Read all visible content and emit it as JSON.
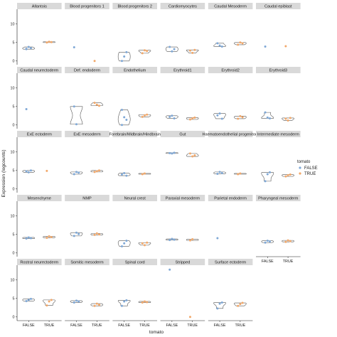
{
  "chart_data": {
    "type": "violin",
    "xlabel": "tomato",
    "ylabel": "Expression (logcounts)",
    "categories": [
      "FALSE",
      "TRUE"
    ],
    "ylim": [
      -1,
      14
    ],
    "yticks": [
      0,
      5,
      10
    ],
    "grid": false,
    "legend": {
      "title": "tomato",
      "position": "right",
      "entries": [
        {
          "label": "FALSE",
          "color": "#7fa8d6"
        },
        {
          "label": "TRUE",
          "color": "#f2a86a"
        }
      ]
    },
    "colors": {
      "FALSE": "#7fa8d6",
      "TRUE": "#f2a86a",
      "violin": "#555555",
      "strip": "#d9d9d9"
    },
    "panels": [
      {
        "name": "Allantois",
        "FALSE": [
          3.2,
          3.8,
          3.5,
          3.3
        ],
        "TRUE": [
          5.0,
          5.2,
          5.1
        ]
      },
      {
        "name": "Blood progenitors 1",
        "FALSE": [
          3.7
        ],
        "TRUE": [
          0.0
        ]
      },
      {
        "name": "Blood progenitors 2",
        "FALSE": [
          0.0,
          1.2,
          2.4
        ],
        "TRUE": [
          2.1,
          2.9,
          2.7
        ]
      },
      {
        "name": "Cardiomyocytes",
        "FALSE": [
          3.8,
          2.6,
          3.2
        ],
        "TRUE": [
          2.8,
          2.2,
          3.0
        ]
      },
      {
        "name": "Caudal Mesoderm",
        "FALSE": [
          4.8,
          4.2,
          3.9
        ],
        "TRUE": [
          4.4,
          5.0,
          4.8
        ]
      },
      {
        "name": "Caudal epiblast",
        "FALSE": [
          3.9
        ],
        "TRUE": [
          4.0
        ]
      },
      {
        "name": "Caudal neurectoderm",
        "FALSE": [
          4.3
        ],
        "TRUE": []
      },
      {
        "name": "Def. endoderm",
        "FALSE": [
          5.0,
          0.2
        ],
        "TRUE": [
          6.0,
          5.5,
          5.2
        ]
      },
      {
        "name": "Endothelium",
        "FALSE": [
          0.0,
          2.1,
          1.4,
          4.1
        ],
        "TRUE": [
          2.2,
          2.6,
          2.8
        ]
      },
      {
        "name": "Erythroid1",
        "FALSE": [
          2.2,
          2.5,
          1.8
        ],
        "TRUE": [
          1.5,
          1.8,
          2.0
        ]
      },
      {
        "name": "Erythroid2",
        "FALSE": [
          2.6,
          3.1,
          1.7
        ],
        "TRUE": [
          1.7,
          2.4,
          2.1
        ]
      },
      {
        "name": "Erythroid3",
        "FALSE": [
          3.4,
          2.0,
          1.8
        ],
        "TRUE": [
          1.7,
          1.2,
          1.9
        ]
      },
      {
        "name": "ExE ectoderm",
        "FALSE": [
          4.8,
          4.5,
          5.0
        ],
        "TRUE": [
          4.9
        ]
      },
      {
        "name": "ExE mesoderm",
        "FALSE": [
          4.0,
          4.6,
          4.4
        ],
        "TRUE": [
          4.6,
          4.8,
          5.0
        ]
      },
      {
        "name": "Forebrain/Midbrain/Hindbrain",
        "FALSE": [
          3.9,
          4.3,
          3.6
        ],
        "TRUE": [
          4.0,
          4.2
        ]
      },
      {
        "name": "Gut",
        "FALSE": [
          9.7,
          9.6,
          9.8
        ],
        "TRUE": [
          9.6,
          8.8,
          9.1
        ]
      },
      {
        "name": "Haematoendothelial progenitors",
        "FALSE": [
          4.1,
          4.6,
          4.3
        ],
        "TRUE": [
          4.0,
          4.2
        ]
      },
      {
        "name": "Intermediate mesoderm",
        "FALSE": [
          2.1,
          4.0,
          4.5
        ],
        "TRUE": [
          3.4,
          3.7,
          3.9
        ]
      },
      {
        "name": "Mesenchyme",
        "FALSE": [
          3.9,
          4.2,
          4.0
        ],
        "TRUE": [
          4.1,
          4.5,
          4.3
        ]
      },
      {
        "name": "NMP",
        "FALSE": [
          4.6,
          5.5,
          5.1
        ],
        "TRUE": [
          4.9,
          5.3,
          5.0
        ]
      },
      {
        "name": "Neural crest",
        "FALSE": [
          1.8,
          2.6,
          3.3
        ],
        "TRUE": [
          2.6,
          2.1,
          2.8
        ]
      },
      {
        "name": "Paraxial mesoderm",
        "FALSE": [
          3.5,
          3.8,
          3.6
        ],
        "TRUE": [
          3.4,
          3.7
        ]
      },
      {
        "name": "Parietal endoderm",
        "FALSE": [
          4.0
        ],
        "TRUE": []
      },
      {
        "name": "Pharyngeal mesoderm",
        "FALSE": [
          2.8,
          3.3,
          3.1
        ],
        "TRUE": [
          3.0,
          3.4,
          3.2
        ]
      },
      {
        "name": "Rostral neurectoderm",
        "FALSE": [
          4.3,
          4.6,
          4.9
        ],
        "TRUE": [
          3.1,
          4.2,
          4.6
        ]
      },
      {
        "name": "Somitic mesoderm",
        "FALSE": [
          3.9,
          4.4,
          4.2
        ],
        "TRUE": [
          3.0,
          3.6,
          3.3
        ]
      },
      {
        "name": "Spinal cord",
        "FALSE": [
          3.0,
          4.2,
          4.5
        ],
        "TRUE": [
          3.9,
          4.2,
          4.0
        ]
      },
      {
        "name": "Stripped",
        "FALSE": [
          12.8
        ],
        "TRUE": [
          0.0
        ]
      },
      {
        "name": "Surface ectoderm",
        "FALSE": [
          2.3,
          3.6,
          3.9
        ],
        "TRUE": [
          3.0,
          3.5,
          3.8
        ]
      }
    ]
  }
}
